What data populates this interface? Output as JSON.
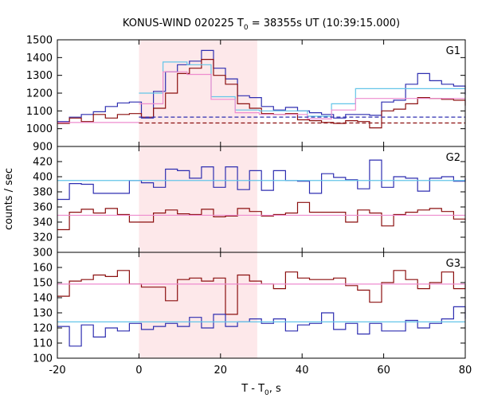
{
  "chart_data": {
    "type": "line",
    "title": {
      "pre": "KONUS-WIND 020225 T",
      "sub": "0",
      "post": " = 38355s UT (10:39:15.000)"
    },
    "xlabel": {
      "pre": "T - T",
      "sub": "0",
      "post": ", s"
    },
    "ylabel": "counts / sec",
    "xlim": [
      -20,
      80
    ],
    "xticks": [
      -20,
      0,
      20,
      40,
      60,
      80
    ],
    "highlight": {
      "x0": 0,
      "x1": 29,
      "color": "#fde8ea"
    },
    "colors": {
      "blue": "#2e2eb0",
      "red": "#8b0f0f",
      "cyan": "#63c5e8",
      "pink": "#ee8ccf"
    },
    "panels": [
      {
        "label": "G1",
        "ylim": [
          900,
          1500
        ],
        "yticks": [
          900,
          1000,
          1100,
          1200,
          1300,
          1400,
          1500
        ],
        "series": [
          {
            "color": "blue",
            "style": "step",
            "x0": -20,
            "dx": 2.944,
            "values": [
              1040,
              1065,
              1080,
              1095,
              1125,
              1145,
              1150,
              1060,
              1210,
              1320,
              1360,
              1380,
              1440,
              1340,
              1280,
              1185,
              1175,
              1125,
              1105,
              1120,
              1100,
              1090,
              1080,
              1060,
              1080,
              1080,
              1075,
              1150,
              1160,
              1250,
              1310,
              1270,
              1250,
              1240,
              1190
            ]
          },
          {
            "color": "red",
            "style": "step",
            "x0": -20,
            "dx": 2.944,
            "values": [
              1030,
              1060,
              1040,
              1080,
              1060,
              1080,
              1085,
              1065,
              1115,
              1200,
              1310,
              1340,
              1390,
              1300,
              1250,
              1140,
              1115,
              1085,
              1080,
              1085,
              1050,
              1045,
              1035,
              1030,
              1045,
              1040,
              1005,
              1100,
              1110,
              1140,
              1175,
              1170,
              1165,
              1160,
              1130
            ]
          },
          {
            "color": "cyan",
            "style": "step",
            "x0": 0,
            "dx": 5.9,
            "values": [
              1200,
              1375,
              1360,
              1180,
              1105,
              1100,
              1100,
              1070,
              1140,
              1225,
              1225,
              1225,
              1225,
              1225
            ]
          },
          {
            "color": "pink",
            "style": "step",
            "x0": 0,
            "dx": 5.9,
            "values": [
              1140,
              1320,
              1305,
              1165,
              1090,
              1080,
              1080,
              1055,
              1105,
              1170,
              1170,
              1170,
              1170,
              1170
            ]
          },
          {
            "color": "pink",
            "style": "flat",
            "x": [
              -20,
              0
            ],
            "y": 1035
          },
          {
            "color": "blue",
            "style": "dashed",
            "x": [
              0,
              80
            ],
            "y": 1065
          },
          {
            "color": "red",
            "style": "dashed",
            "x": [
              0,
              80
            ],
            "y": 1032
          }
        ]
      },
      {
        "label": "G2",
        "ylim": [
          300,
          440
        ],
        "yticks": [
          300,
          320,
          340,
          360,
          380,
          400,
          420
        ],
        "series": [
          {
            "color": "blue",
            "style": "step",
            "x0": -20,
            "dx": 2.944,
            "values": [
              370,
              391,
              390,
              378,
              378,
              378,
              395,
              392,
              386,
              410,
              408,
              398,
              413,
              386,
              413,
              383,
              408,
              382,
              408,
              395,
              394,
              378,
              404,
              399,
              396,
              384,
              422,
              386,
              400,
              398,
              381,
              398,
              400,
              394,
              398
            ]
          },
          {
            "color": "red",
            "style": "step",
            "x0": -20,
            "dx": 2.944,
            "values": [
              330,
              353,
              357,
              352,
              358,
              350,
              340,
              340,
              352,
              356,
              351,
              350,
              357,
              347,
              348,
              358,
              354,
              348,
              350,
              352,
              366,
              353,
              353,
              353,
              340,
              356,
              352,
              335,
              350,
              353,
              356,
              358,
              354,
              344,
              343
            ]
          },
          {
            "color": "cyan",
            "style": "flat",
            "x": [
              -20,
              80
            ],
            "y": 395
          },
          {
            "color": "pink",
            "style": "flat",
            "x": [
              -20,
              80
            ],
            "y": 349
          }
        ]
      },
      {
        "label": "G3",
        "ylim": [
          100,
          170
        ],
        "yticks": [
          100,
          110,
          120,
          130,
          140,
          150,
          160
        ],
        "series": [
          {
            "color": "red",
            "style": "step",
            "x0": -20,
            "dx": 2.944,
            "values": [
              141,
              151,
              152,
              155,
              154,
              158,
              149,
              147,
              147,
              138,
              152,
              153,
              151,
              153,
              129,
              155,
              151,
              149,
              146,
              157,
              153,
              152,
              152,
              153,
              148,
              145,
              137,
              150,
              158,
              152,
              146,
              150,
              157,
              146,
              149
            ]
          },
          {
            "color": "blue",
            "style": "step",
            "x0": -20,
            "dx": 2.944,
            "values": [
              121,
              108,
              122,
              114,
              120,
              118,
              123,
              119,
              121,
              123,
              121,
              127,
              120,
              129,
              121,
              124,
              126,
              123,
              126,
              118,
              122,
              123,
              130,
              119,
              123,
              116,
              123,
              118,
              118,
              125,
              120,
              123,
              126,
              134,
              126
            ]
          },
          {
            "color": "pink",
            "style": "flat",
            "x": [
              -20,
              80
            ],
            "y": 149
          },
          {
            "color": "cyan",
            "style": "flat",
            "x": [
              -20,
              80
            ],
            "y": 124
          }
        ]
      }
    ]
  }
}
